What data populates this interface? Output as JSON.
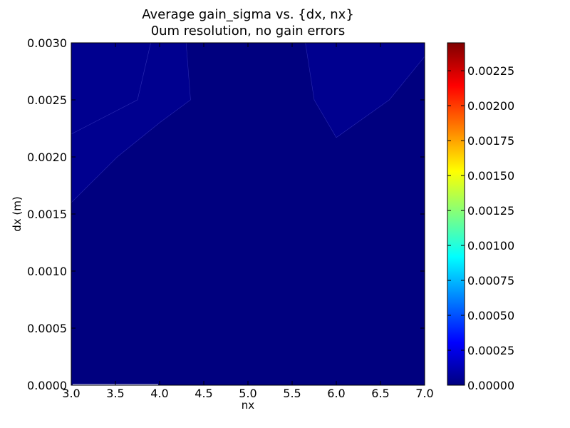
{
  "chart_data": {
    "type": "contour",
    "title_lines": [
      "Average gain_sigma vs. {dx, nx}",
      "0um resolution, no gain errors"
    ],
    "xlabel": "nx",
    "ylabel": "dx (m)",
    "xlim": [
      3.0,
      7.0
    ],
    "ylim": [
      0.0,
      0.003
    ],
    "x_ticks": [
      3.0,
      3.5,
      4.0,
      4.5,
      5.0,
      5.5,
      6.0,
      6.5,
      7.0
    ],
    "x_tick_labels": [
      "3.0",
      "3.5",
      "4.0",
      "4.5",
      "5.0",
      "5.5",
      "6.0",
      "6.5",
      "7.0"
    ],
    "y_ticks": [
      0.0,
      0.0005,
      0.001,
      0.0015,
      0.002,
      0.0025,
      0.003
    ],
    "y_tick_labels": [
      "0.0000",
      "0.0005",
      "0.0010",
      "0.0015",
      "0.0020",
      "0.0025",
      "0.0030"
    ],
    "background_level_color": "#00007f",
    "regions": [
      {
        "color": "#00008f",
        "points": [
          [
            3.0,
            0.0022
          ],
          [
            3.75,
            0.0025
          ],
          [
            3.9,
            0.003
          ],
          [
            3.0,
            0.003
          ]
        ]
      },
      {
        "color": "#00008f",
        "points": [
          [
            3.0,
            0.0016
          ],
          [
            3.52,
            0.002
          ],
          [
            4.0,
            0.0023
          ],
          [
            4.35,
            0.0025
          ],
          [
            4.3,
            0.003
          ],
          [
            3.9,
            0.003
          ],
          [
            3.75,
            0.0025
          ],
          [
            3.0,
            0.0022
          ]
        ]
      },
      {
        "color": "#00008f",
        "points": [
          [
            5.65,
            0.003
          ],
          [
            5.75,
            0.0025
          ],
          [
            6.0,
            0.00217
          ],
          [
            6.6,
            0.0025
          ],
          [
            7.0,
            0.00288
          ],
          [
            7.0,
            0.003
          ]
        ]
      }
    ],
    "colorbar": {
      "min": 0.0,
      "max": 0.00245,
      "ticks": [
        0.0,
        0.00025,
        0.0005,
        0.00075,
        0.001,
        0.00125,
        0.0015,
        0.00175,
        0.002,
        0.00225
      ],
      "tick_labels": [
        "0.00000",
        "0.00025",
        "0.00050",
        "0.00075",
        "0.00100",
        "0.00125",
        "0.00150",
        "0.00175",
        "0.00200",
        "0.00225"
      ],
      "colormap": "jet",
      "stops": [
        "#00007f",
        "#0000ff",
        "#007fff",
        "#00ffff",
        "#7fff7f",
        "#ffff00",
        "#ff7f00",
        "#ff0000",
        "#7f0000"
      ]
    }
  }
}
